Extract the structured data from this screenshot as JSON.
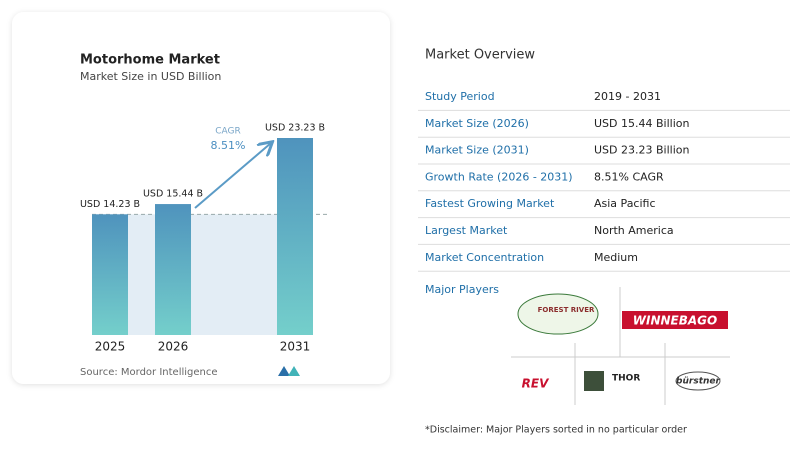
{
  "chart_data": {
    "type": "bar",
    "title": "Motorhome Market",
    "subtitle": "Market Size in USD Billion",
    "categories": [
      "2025",
      "2026",
      "2031"
    ],
    "values": [
      14.23,
      15.44,
      23.23
    ],
    "value_labels": [
      "USD 14.23 B",
      "USD 15.44 B",
      "USD 23.23 B"
    ],
    "color": "#4f93bd",
    "annotation": {
      "label": "CAGR",
      "value": "8.51%"
    },
    "source": "Source: Mordor Intelligence"
  },
  "overview": {
    "title": "Market Overview",
    "rows": [
      [
        "Study Period",
        "2019 - 2031"
      ],
      [
        "Market Size (2026)",
        "USD 15.44 Billion"
      ],
      [
        "Market Size (2031)",
        "USD 23.23 Billion"
      ],
      [
        "Growth Rate (2026 - 2031)",
        "8.51% CAGR"
      ],
      [
        "Fastest Growing Market",
        "Asia Pacific"
      ],
      [
        "Largest Market",
        "North America"
      ],
      [
        "Market Concentration",
        "Medium"
      ]
    ]
  },
  "players": {
    "title": "Major Players",
    "logos": [
      "FOREST RIVER",
      "WINNEBAGO",
      "REV",
      "THOR",
      "bürstner"
    ]
  },
  "disclaimer": "*Disclaimer: Major Players sorted in no particular order"
}
